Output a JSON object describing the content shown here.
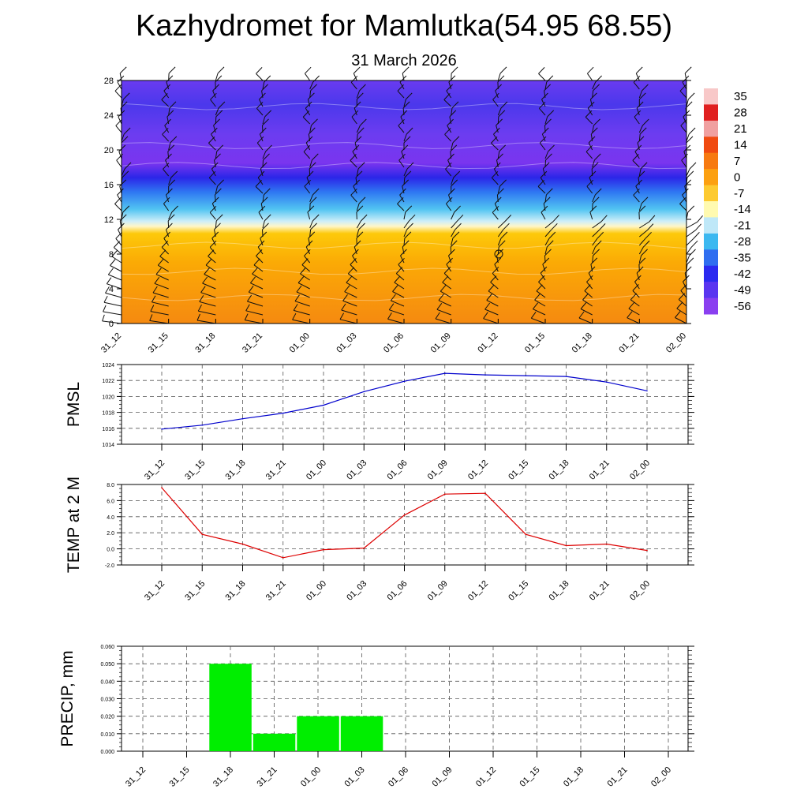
{
  "header": {
    "title": "Kazhydromet for Mamlutka(54.95 68.55)",
    "subtitle": "31 March 2026"
  },
  "time_labels": [
    "31_12",
    "31_15",
    "31_18",
    "31_21",
    "01_00",
    "01_03",
    "01_06",
    "01_09",
    "01_12",
    "01_15",
    "01_18",
    "01_21",
    "02_00"
  ],
  "colors": {
    "pmsl_line": "#0000cc",
    "temp_line": "#dd0000",
    "precip_bar": "#00ee00"
  },
  "chart_data": [
    {
      "type": "heatmap",
      "name": "temperature-cross-section",
      "ylim": [
        0,
        28
      ],
      "yticks": [
        "0",
        "4",
        "8",
        "12",
        "16",
        "20",
        "24",
        "28"
      ],
      "colorbar_labels": [
        "35",
        "28",
        "21",
        "14",
        "7",
        "0",
        "-7",
        "-14",
        "-21",
        "-28",
        "-35",
        "-42",
        "-49",
        "-56"
      ],
      "levels_temperature": [
        {
          "level": 0,
          "temp": 3
        },
        {
          "level": 4,
          "temp": 1
        },
        {
          "level": 8,
          "temp": -1
        },
        {
          "level": 11,
          "temp": -5
        },
        {
          "level": 12,
          "temp": -12
        },
        {
          "level": 13,
          "temp": -18
        },
        {
          "level": 15,
          "temp": -30
        },
        {
          "level": 17,
          "temp": -45
        },
        {
          "level": 18,
          "temp": -56
        },
        {
          "level": 20,
          "temp": -53
        },
        {
          "level": 24,
          "temp": -57
        },
        {
          "level": 28,
          "temp": -54
        }
      ],
      "barbs": "wind barbs at each time column and level"
    },
    {
      "type": "line",
      "name": "pmsl",
      "ylabel": "PMSL",
      "ylim": [
        1014,
        1024
      ],
      "yticks": [
        "1014",
        "1016",
        "1018",
        "1020",
        "1022",
        "1024"
      ],
      "values": [
        1015.9,
        1016.4,
        1017.2,
        1017.9,
        1018.9,
        1020.6,
        1021.9,
        1022.9,
        1022.7,
        1022.6,
        1022.5,
        1021.8,
        1020.7
      ]
    },
    {
      "type": "line",
      "name": "temp-2m",
      "ylabel": "TEMP at 2 M",
      "ylim": [
        -2,
        8
      ],
      "yticks": [
        "-2.0",
        "0.0",
        "2.0",
        "4.0",
        "6.0",
        "8.0"
      ],
      "values": [
        7.6,
        1.8,
        0.6,
        -1.1,
        -0.1,
        0.1,
        4.2,
        6.8,
        6.9,
        1.8,
        0.4,
        0.6,
        -0.2
      ]
    },
    {
      "type": "bar",
      "name": "precip",
      "ylabel": "PRECIP, mm",
      "ylim": [
        0,
        0.06
      ],
      "yticks": [
        "0.000",
        "0.010",
        "0.020",
        "0.030",
        "0.040",
        "0.050",
        "0.060"
      ],
      "values": [
        0,
        0,
        0.05,
        0.01,
        0.02,
        0.02,
        0,
        0,
        0,
        0,
        0,
        0,
        0
      ]
    }
  ]
}
